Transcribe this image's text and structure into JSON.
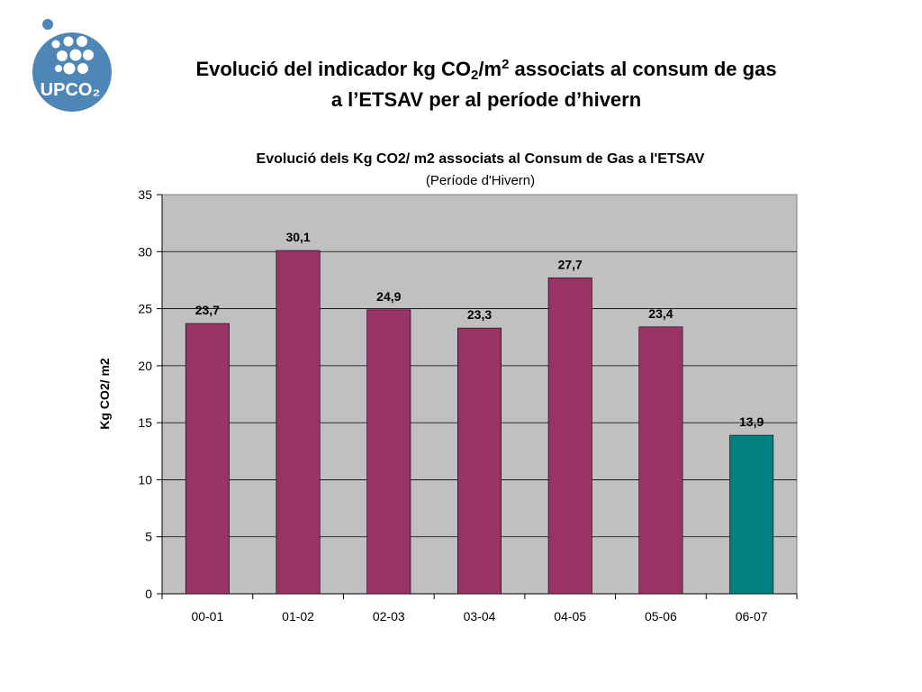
{
  "logo": {
    "text": "UPCO₂",
    "color": "#4f86b8"
  },
  "slide": {
    "title_part1": "Evolució del indicador kg CO",
    "title_sub": "2",
    "title_part2": "/m",
    "title_sup": "2",
    "title_part3": " associats al consum de gas",
    "title_line2": "a l’ETSAV per al període d’hivern"
  },
  "chart_data": {
    "type": "bar",
    "title": "Evolució dels Kg CO2/ m2 associats al Consum de Gas a l'ETSAV",
    "subtitle": "(Període d'Hivern)",
    "xlabel": "",
    "ylabel": "Kg CO2/ m2",
    "categories": [
      "00-01",
      "01-02",
      "02-03",
      "03-04",
      "04-05",
      "05-06",
      "06-07"
    ],
    "values": [
      23.7,
      30.1,
      24.9,
      23.3,
      27.7,
      23.4,
      13.9
    ],
    "value_labels": [
      "23,7",
      "30,1",
      "24,9",
      "23,3",
      "27,7",
      "23,4",
      "13,9"
    ],
    "bar_colors": [
      "#993366",
      "#993366",
      "#993366",
      "#993366",
      "#993366",
      "#993366",
      "#008080"
    ],
    "ylim": [
      0,
      35
    ],
    "yticks": [
      0,
      5,
      10,
      15,
      20,
      25,
      30,
      35
    ],
    "grid": true,
    "plot_background": "#c0c0c0"
  }
}
